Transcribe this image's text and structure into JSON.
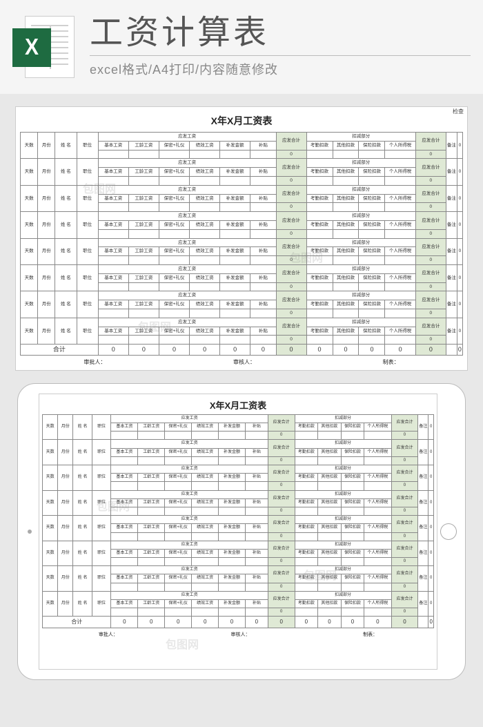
{
  "hero": {
    "title": "工资计算表",
    "subtitle": "excel格式/A4打印/内容随意修改",
    "icon_letter": "X"
  },
  "sheet": {
    "title": "X年X月工资表",
    "check": "检查",
    "cols": {
      "days": "天数",
      "month": "月份",
      "name": "姓  名",
      "post": "职位",
      "yfgz_group": "应发工资",
      "base": "基本工资",
      "seniority": "工龄工资",
      "insur_bonus": "保密+礼仪",
      "perf": "绩效工资",
      "reissue": "补发金额",
      "allow": "补贴",
      "due_total": "应发合计",
      "deduct_group": "扣减部分",
      "attend_ded": "考勤扣款",
      "other_ded": "其他扣款",
      "insur_ded": "保险扣款",
      "tax": "个人所得税",
      "net_total": "应发合计",
      "remark": "备注"
    },
    "zero": "0",
    "total_label": "合计",
    "footer": {
      "reviewer": "审批人：",
      "auditor": "审核人：",
      "maker": "制表："
    },
    "row_count_top": 8,
    "row_count_tablet": 8
  },
  "style": {
    "green": "#dfe9d5",
    "hero_bg": "#f5f5f5",
    "excel_green": "#1e6b41",
    "body_bg": "#e8e8e8"
  },
  "watermark": "包图网"
}
